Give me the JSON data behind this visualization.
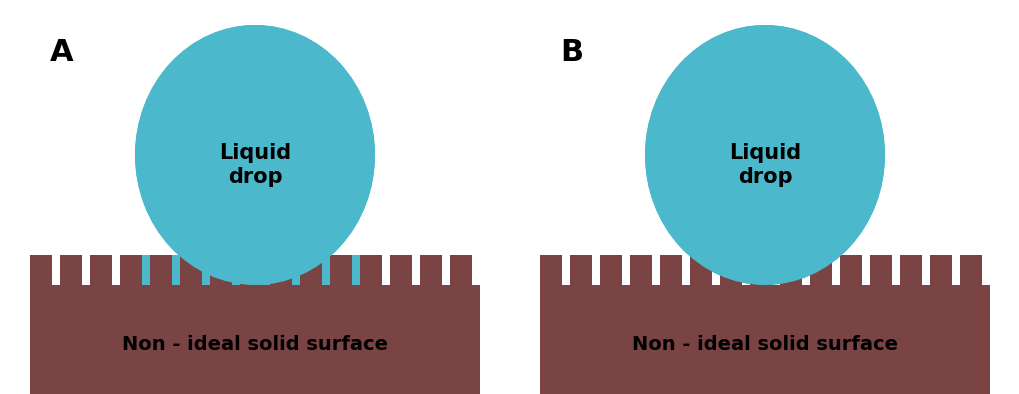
{
  "background_color": "#ffffff",
  "drop_color": "#4BB8CC",
  "drop_edge_color": "#4BB8CC",
  "surface_color": "#7A4444",
  "label_A": "A",
  "label_B": "B",
  "drop_label": "Liquid\ndrop",
  "surface_label": "Non - ideal solid surface",
  "figsize": [
    10.2,
    3.94
  ],
  "dpi": 100
}
